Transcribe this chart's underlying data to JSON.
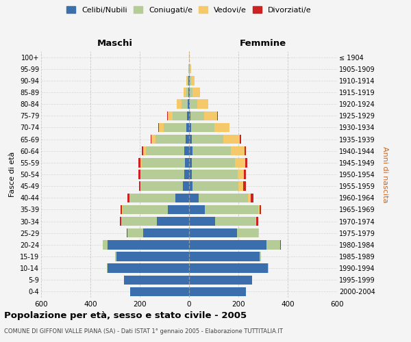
{
  "age_groups": [
    "0-4",
    "5-9",
    "10-14",
    "15-19",
    "20-24",
    "25-29",
    "30-34",
    "35-39",
    "40-44",
    "45-49",
    "50-54",
    "55-59",
    "60-64",
    "65-69",
    "70-74",
    "75-79",
    "80-84",
    "85-89",
    "90-94",
    "95-99",
    "100+"
  ],
  "birth_years": [
    "2000-2004",
    "1995-1999",
    "1990-1994",
    "1985-1989",
    "1980-1984",
    "1975-1979",
    "1970-1974",
    "1965-1969",
    "1960-1964",
    "1955-1959",
    "1950-1954",
    "1945-1949",
    "1940-1944",
    "1935-1939",
    "1930-1934",
    "1925-1929",
    "1920-1924",
    "1915-1919",
    "1910-1914",
    "1905-1909",
    "≤ 1904"
  ],
  "colors": {
    "celibi": "#3a6eac",
    "coniugati": "#b5cc96",
    "vedovi": "#f5c96a",
    "divorziati": "#cc2222"
  },
  "males": {
    "celibi": [
      240,
      265,
      330,
      295,
      330,
      185,
      130,
      85,
      55,
      25,
      20,
      18,
      20,
      15,
      12,
      8,
      5,
      3,
      2,
      1,
      0
    ],
    "coniugati": [
      0,
      0,
      2,
      5,
      20,
      65,
      145,
      185,
      185,
      170,
      175,
      175,
      155,
      120,
      90,
      60,
      25,
      8,
      4,
      1,
      0
    ],
    "vedovi": [
      0,
      0,
      0,
      0,
      0,
      0,
      0,
      1,
      1,
      2,
      3,
      5,
      12,
      18,
      20,
      18,
      20,
      12,
      5,
      2,
      0
    ],
    "divorziati": [
      0,
      0,
      0,
      0,
      0,
      2,
      5,
      8,
      8,
      5,
      8,
      8,
      5,
      3,
      2,
      2,
      0,
      0,
      0,
      0,
      0
    ]
  },
  "females": {
    "celibi": [
      230,
      255,
      320,
      285,
      315,
      195,
      105,
      65,
      40,
      15,
      12,
      12,
      15,
      10,
      8,
      5,
      4,
      3,
      2,
      1,
      0
    ],
    "coniugati": [
      0,
      0,
      2,
      8,
      55,
      85,
      165,
      215,
      200,
      185,
      185,
      175,
      155,
      130,
      95,
      55,
      28,
      12,
      5,
      2,
      0
    ],
    "vedovi": [
      0,
      0,
      0,
      0,
      0,
      2,
      2,
      5,
      10,
      20,
      25,
      40,
      55,
      65,
      60,
      55,
      45,
      30,
      15,
      5,
      2
    ],
    "divorziati": [
      0,
      0,
      0,
      0,
      2,
      2,
      8,
      8,
      12,
      10,
      8,
      8,
      5,
      5,
      2,
      2,
      0,
      0,
      0,
      0,
      0
    ]
  },
  "title": "Popolazione per età, sesso e stato civile - 2005",
  "subtitle": "COMUNE DI GIFFONI VALLE PIANA (SA) - Dati ISTAT 1° gennaio 2005 - Elaborazione TUTTITALIA.IT",
  "xlabel_left": "Maschi",
  "xlabel_right": "Femmine",
  "ylabel_left": "Fasce di età",
  "ylabel_right": "Anni di nascita",
  "xlim": 600,
  "legend_labels": [
    "Celibi/Nubili",
    "Coniugati/e",
    "Vedovi/e",
    "Divorziati/e"
  ],
  "bg_color": "#f4f4f4",
  "plot_bg": "#f4f4f4"
}
